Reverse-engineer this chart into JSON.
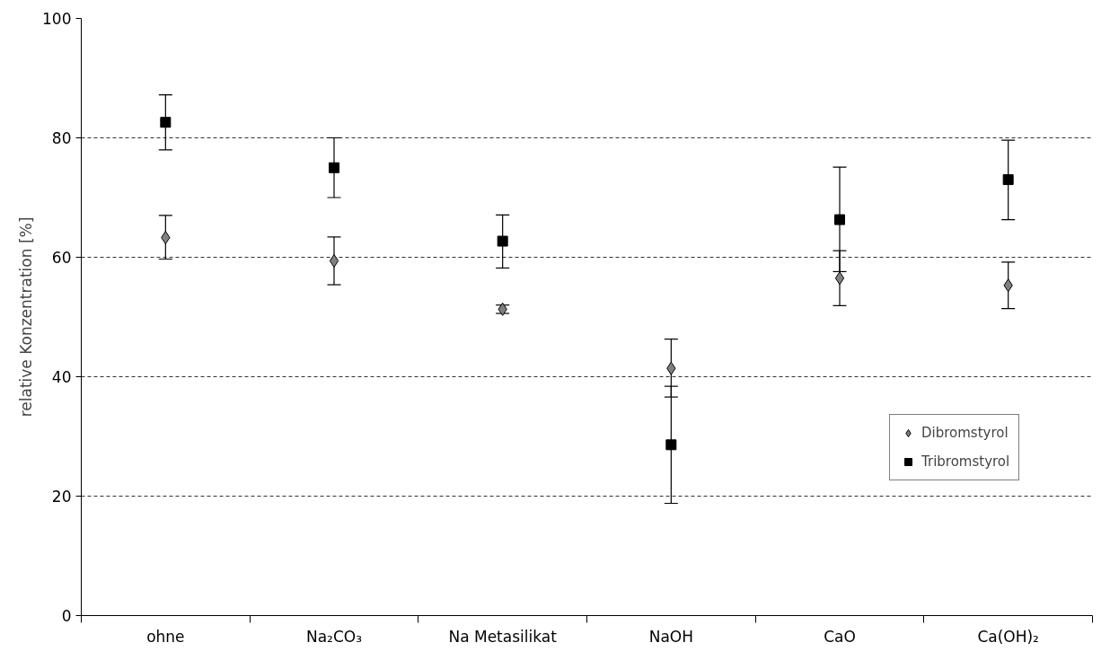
{
  "chart_data": {
    "type": "scatter",
    "ylabel": "relative Konzentration [%]",
    "categories": [
      "ohne",
      "Na₂CO₃",
      "Na Metasilikat",
      "NaOH",
      "CaO",
      "Ca(OH)₂"
    ],
    "series": [
      {
        "name": "Dibromstyrol",
        "color": "#808080",
        "marker": "diamond",
        "values": [
          63.3,
          59.4,
          51.3,
          41.4,
          56.5,
          55.3
        ],
        "errors": [
          [
            59.7,
            67.0
          ],
          [
            55.4,
            63.4
          ],
          [
            50.6,
            52.0
          ],
          [
            36.6,
            46.3
          ],
          [
            51.9,
            61.1
          ],
          [
            51.4,
            59.2
          ]
        ]
      },
      {
        "name": "Tribromstyrol",
        "color": "#000000",
        "marker": "square",
        "values": [
          82.6,
          75.0,
          62.7,
          28.6,
          66.3,
          73.0
        ],
        "errors": [
          [
            78.0,
            87.2
          ],
          [
            70.0,
            80.0
          ],
          [
            58.2,
            67.1
          ],
          [
            18.8,
            38.4
          ],
          [
            57.6,
            75.1
          ],
          [
            66.3,
            79.6
          ]
        ]
      }
    ],
    "ylim": [
      0,
      100
    ],
    "yticks": [
      0,
      20,
      40,
      60,
      80,
      100
    ],
    "grid": "y",
    "legend": "right"
  }
}
